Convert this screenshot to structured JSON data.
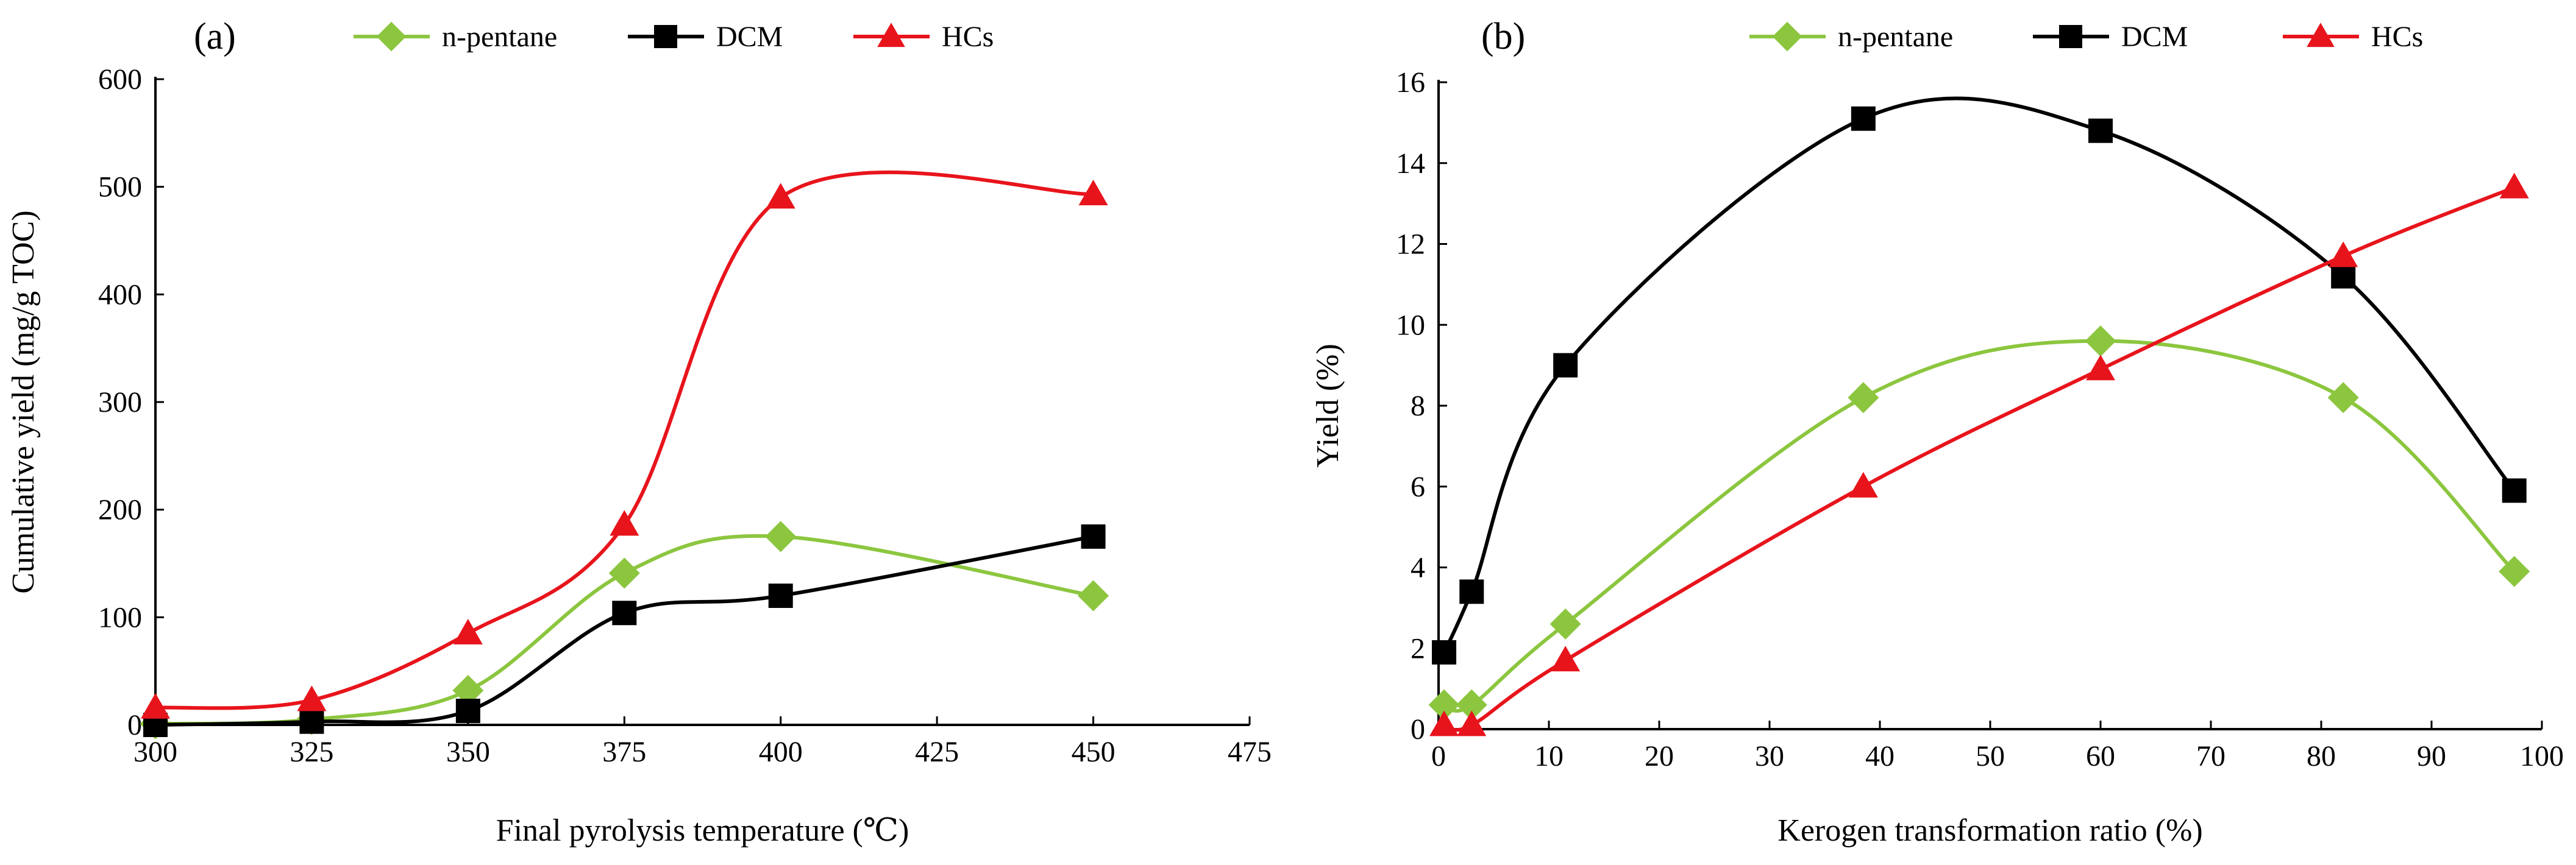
{
  "chart_data": [
    {
      "panel_label": "(a)",
      "type": "line",
      "xlabel": "Final pyrolysis temperature (℃)",
      "ylabel": "Cumulative yield (mg/g TOC)",
      "xlim": [
        300,
        475
      ],
      "ylim": [
        0,
        600
      ],
      "xticks": [
        300,
        325,
        350,
        375,
        400,
        425,
        450,
        475
      ],
      "yticks": [
        0,
        100,
        200,
        300,
        400,
        500,
        600
      ],
      "legend_position": "top",
      "series": [
        {
          "name": "n-pentane",
          "color": "#8CC63F",
          "marker": "diamond",
          "x": [
            300,
            325,
            350,
            375,
            400,
            450
          ],
          "y": [
            1,
            5,
            32,
            141,
            175,
            120
          ]
        },
        {
          "name": "DCM",
          "color": "#000000",
          "marker": "square",
          "x": [
            300,
            325,
            350,
            375,
            400,
            450
          ],
          "y": [
            0,
            3,
            13,
            104,
            120,
            175
          ]
        },
        {
          "name": "HCs",
          "color": "#E8141C",
          "marker": "triangle",
          "x": [
            300,
            325,
            350,
            375,
            400,
            450
          ],
          "y": [
            16,
            23,
            85,
            186,
            490,
            493
          ]
        }
      ]
    },
    {
      "panel_label": "(b)",
      "type": "line",
      "xlabel": "Kerogen transformation ratio (%)",
      "ylabel": "Yield (%)",
      "xlim": [
        0,
        100
      ],
      "ylim": [
        0,
        16
      ],
      "xticks": [
        0,
        10,
        20,
        30,
        40,
        50,
        60,
        70,
        80,
        90,
        100
      ],
      "yticks": [
        0,
        2,
        4,
        6,
        8,
        10,
        12,
        14,
        16
      ],
      "legend_position": "top",
      "series": [
        {
          "name": "n-pentane",
          "color": "#8CC63F",
          "marker": "diamond",
          "x": [
            0.5,
            3,
            11.5,
            38.5,
            60,
            82,
            97.5
          ],
          "y": [
            0.6,
            0.6,
            2.6,
            8.2,
            9.6,
            8.2,
            3.9
          ]
        },
        {
          "name": "DCM",
          "color": "#000000",
          "marker": "square",
          "x": [
            0.5,
            3,
            11.5,
            38.5,
            60,
            82,
            97.5
          ],
          "y": [
            1.9,
            3.4,
            9.0,
            15.1,
            14.8,
            11.2,
            5.9
          ]
        },
        {
          "name": "HCs",
          "color": "#E8141C",
          "marker": "triangle",
          "x": [
            0.5,
            3,
            11.5,
            38.5,
            60,
            82,
            97.5
          ],
          "y": [
            0.1,
            0.1,
            1.7,
            6.0,
            8.9,
            11.7,
            13.4
          ]
        }
      ]
    }
  ]
}
